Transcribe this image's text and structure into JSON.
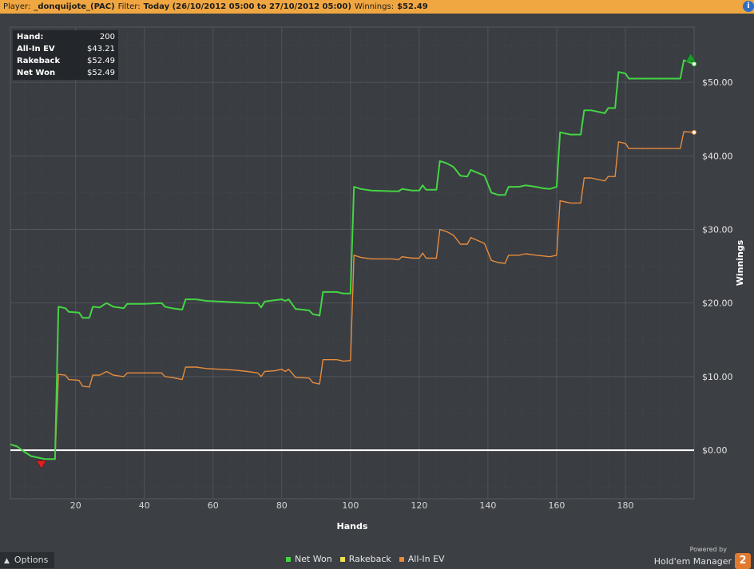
{
  "header": {
    "player_label": "Player:",
    "player_value": "_donquijote_(PAC)",
    "filter_label": "Filter:",
    "filter_value": "Today (26/10/2012 05:00 to 27/10/2012 05:00)",
    "winnings_label": "Winnings:",
    "winnings_value": "$52.49",
    "info_icon": "i"
  },
  "stats": [
    {
      "key": "Hand:",
      "value": "200"
    },
    {
      "key": "All-In EV",
      "value": "$43.21"
    },
    {
      "key": "Rakeback",
      "value": "$52.49"
    },
    {
      "key": "Net Won",
      "value": "$52.49"
    }
  ],
  "options": {
    "icon": "chevron-up-icon",
    "label": "Options"
  },
  "brand": {
    "powered_by": "Powered by",
    "name": "Hold'em Manager",
    "logo": "2",
    "logo_color": "#e07a2e"
  },
  "chart_data": {
    "type": "line",
    "xlabel": "Hands",
    "ylabel": "Winnings",
    "xlim": [
      1,
      200
    ],
    "ylim": [
      -6.6,
      57.5
    ],
    "x_ticks": [
      20,
      40,
      60,
      80,
      100,
      120,
      140,
      160,
      180
    ],
    "y_ticks": [
      0,
      10,
      20,
      30,
      40,
      50
    ],
    "y_tick_labels": [
      "$0.00",
      "$10.00",
      "$20.00",
      "$30.00",
      "$40.00",
      "$50.00"
    ],
    "grid": true,
    "legend_position": "bottom",
    "series": [
      {
        "name": "Net Won",
        "color": "#44d444",
        "points": [
          [
            1,
            0.8
          ],
          [
            3,
            0.5
          ],
          [
            5,
            -0.2
          ],
          [
            7,
            -0.8
          ],
          [
            9,
            -1
          ],
          [
            11,
            -1.2
          ],
          [
            14,
            -1.2
          ],
          [
            15,
            19.5
          ],
          [
            17,
            19.3
          ],
          [
            18,
            18.8
          ],
          [
            21,
            18.7
          ],
          [
            22,
            18
          ],
          [
            24,
            18
          ],
          [
            25,
            19.5
          ],
          [
            27,
            19.4
          ],
          [
            29,
            20
          ],
          [
            31,
            19.5
          ],
          [
            34,
            19.3
          ],
          [
            35,
            19.9
          ],
          [
            38,
            19.9
          ],
          [
            40,
            19.9
          ],
          [
            45,
            20
          ],
          [
            46,
            19.5
          ],
          [
            48,
            19.3
          ],
          [
            51,
            19.1
          ],
          [
            52,
            20.5
          ],
          [
            55,
            20.5
          ],
          [
            58,
            20.3
          ],
          [
            62,
            20.2
          ],
          [
            66,
            20.1
          ],
          [
            70,
            20
          ],
          [
            73,
            20
          ],
          [
            74,
            19.4
          ],
          [
            75,
            20.2
          ],
          [
            78,
            20.4
          ],
          [
            80,
            20.5
          ],
          [
            81,
            20.3
          ],
          [
            82,
            20.5
          ],
          [
            84,
            19.2
          ],
          [
            88,
            19
          ],
          [
            89,
            18.5
          ],
          [
            91,
            18.3
          ],
          [
            92,
            21.5
          ],
          [
            96,
            21.5
          ],
          [
            98,
            21.3
          ],
          [
            100,
            21.3
          ],
          [
            101,
            35.8
          ],
          [
            103,
            35.5
          ],
          [
            106,
            35.3
          ],
          [
            112,
            35.2
          ],
          [
            114,
            35.2
          ],
          [
            115,
            35.5
          ],
          [
            118,
            35.3
          ],
          [
            120,
            35.3
          ],
          [
            121,
            36
          ],
          [
            122,
            35.4
          ],
          [
            125,
            35.4
          ],
          [
            126,
            39.3
          ],
          [
            128,
            39
          ],
          [
            130,
            38.5
          ],
          [
            132,
            37.3
          ],
          [
            134,
            37.2
          ],
          [
            135,
            38.1
          ],
          [
            137,
            37.7
          ],
          [
            139,
            37.3
          ],
          [
            141,
            35
          ],
          [
            143,
            34.7
          ],
          [
            145,
            34.7
          ],
          [
            146,
            35.8
          ],
          [
            149,
            35.8
          ],
          [
            151,
            36
          ],
          [
            154,
            35.8
          ],
          [
            156,
            35.6
          ],
          [
            158,
            35.5
          ],
          [
            160,
            35.8
          ],
          [
            161,
            43.2
          ],
          [
            163,
            43
          ],
          [
            164,
            42.9
          ],
          [
            167,
            42.9
          ],
          [
            168,
            46.2
          ],
          [
            170,
            46.2
          ],
          [
            174,
            45.8
          ],
          [
            175,
            46.5
          ],
          [
            177,
            46.5
          ],
          [
            178,
            51.4
          ],
          [
            180,
            51.2
          ],
          [
            181,
            50.5
          ],
          [
            190,
            50.5
          ],
          [
            196,
            50.5
          ],
          [
            197,
            53
          ],
          [
            200,
            52.5
          ]
        ]
      },
      {
        "name": "All-In EV",
        "color": "#e78c3c",
        "points": [
          [
            1,
            0.8
          ],
          [
            3,
            0.5
          ],
          [
            5,
            -0.2
          ],
          [
            7,
            -0.8
          ],
          [
            9,
            -1
          ],
          [
            11,
            -1.2
          ],
          [
            14,
            -1.2
          ],
          [
            15,
            10.3
          ],
          [
            17,
            10.2
          ],
          [
            18,
            9.6
          ],
          [
            21,
            9.5
          ],
          [
            22,
            8.7
          ],
          [
            24,
            8.6
          ],
          [
            25,
            10.2
          ],
          [
            27,
            10.2
          ],
          [
            29,
            10.7
          ],
          [
            31,
            10.2
          ],
          [
            34,
            10
          ],
          [
            35,
            10.5
          ],
          [
            40,
            10.5
          ],
          [
            45,
            10.5
          ],
          [
            46,
            10
          ],
          [
            48,
            9.9
          ],
          [
            51,
            9.6
          ],
          [
            52,
            11.3
          ],
          [
            55,
            11.3
          ],
          [
            58,
            11.1
          ],
          [
            62,
            11
          ],
          [
            66,
            10.9
          ],
          [
            70,
            10.7
          ],
          [
            73,
            10.5
          ],
          [
            74,
            10
          ],
          [
            75,
            10.7
          ],
          [
            78,
            10.8
          ],
          [
            80,
            11
          ],
          [
            81,
            10.7
          ],
          [
            82,
            11
          ],
          [
            84,
            9.9
          ],
          [
            88,
            9.8
          ],
          [
            89,
            9.2
          ],
          [
            91,
            9
          ],
          [
            92,
            12.3
          ],
          [
            96,
            12.3
          ],
          [
            98,
            12.1
          ],
          [
            100,
            12.2
          ],
          [
            101,
            26.5
          ],
          [
            103,
            26.2
          ],
          [
            106,
            26
          ],
          [
            112,
            26
          ],
          [
            114,
            25.9
          ],
          [
            115,
            26.3
          ],
          [
            118,
            26.1
          ],
          [
            120,
            26.1
          ],
          [
            121,
            26.8
          ],
          [
            122,
            26.1
          ],
          [
            125,
            26.1
          ],
          [
            126,
            30
          ],
          [
            128,
            29.7
          ],
          [
            130,
            29.2
          ],
          [
            132,
            28
          ],
          [
            134,
            28
          ],
          [
            135,
            28.9
          ],
          [
            137,
            28.5
          ],
          [
            139,
            28.1
          ],
          [
            141,
            25.8
          ],
          [
            143,
            25.5
          ],
          [
            145,
            25.4
          ],
          [
            146,
            26.5
          ],
          [
            149,
            26.5
          ],
          [
            151,
            26.7
          ],
          [
            154,
            26.5
          ],
          [
            156,
            26.4
          ],
          [
            158,
            26.3
          ],
          [
            160,
            26.5
          ],
          [
            161,
            33.9
          ],
          [
            163,
            33.7
          ],
          [
            164,
            33.6
          ],
          [
            167,
            33.6
          ],
          [
            168,
            37
          ],
          [
            170,
            37
          ],
          [
            174,
            36.6
          ],
          [
            175,
            37.2
          ],
          [
            177,
            37.2
          ],
          [
            178,
            41.9
          ],
          [
            180,
            41.7
          ],
          [
            181,
            41
          ],
          [
            190,
            41
          ],
          [
            196,
            41
          ],
          [
            197,
            43.3
          ],
          [
            200,
            43.2
          ]
        ]
      }
    ],
    "legend": [
      {
        "name": "Net Won",
        "color": "#44d444"
      },
      {
        "name": "Rakeback",
        "color": "#f0e04a"
      },
      {
        "name": "All-In EV",
        "color": "#e78c3c"
      }
    ],
    "markers": [
      {
        "type": "min",
        "x": 10,
        "y": -1.2,
        "color": "#e02020"
      },
      {
        "type": "max",
        "x": 199,
        "y": 52.5,
        "color": "#1e9a2e"
      }
    ]
  }
}
